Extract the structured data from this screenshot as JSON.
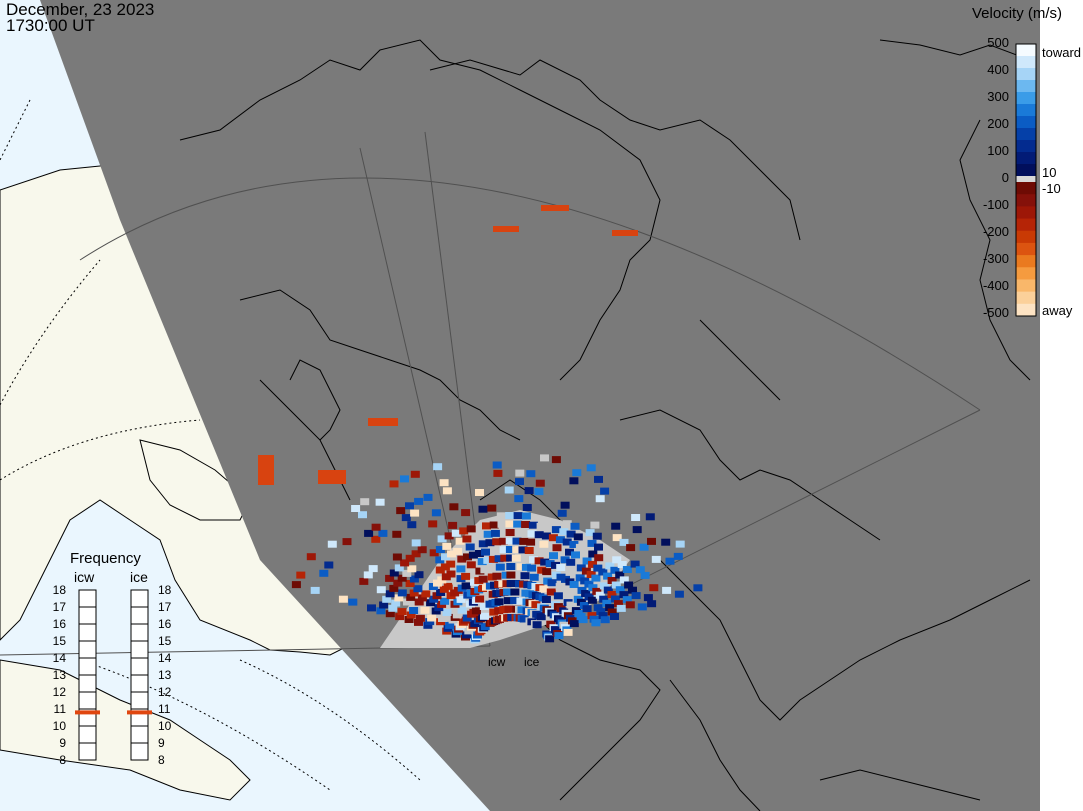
{
  "header": {
    "date": "December, 23 2023",
    "time": "1730:00 UT"
  },
  "colorbar": {
    "title": "Velocity (m/s)",
    "ticks_positive": [
      "500",
      "400",
      "300",
      "200",
      "100",
      "0"
    ],
    "ticks_negative": [
      "-100",
      "-200",
      "-300",
      "-400",
      "-500"
    ],
    "small_pos": "10",
    "small_neg": "-10",
    "toward": "toward",
    "away": "away",
    "colors": [
      "#f5fbff",
      "#cfe8fb",
      "#a6d4f6",
      "#6cb8f0",
      "#3a9ce8",
      "#1a7ad8",
      "#0b5cc4",
      "#0540a8",
      "#032b8f",
      "#021b76",
      "#010f5c"
    ],
    "colors_neg": [
      "#6e0b04",
      "#85110a",
      "#9d1707",
      "#b52406",
      "#c93a04",
      "#dc5410",
      "#ea7a1f",
      "#f59b3f",
      "#f9b76a",
      "#fbd09a",
      "#fde3c3"
    ]
  },
  "frequency": {
    "title": "Frequency",
    "radars": [
      {
        "name": "icw",
        "current_mhz": 10.8
      },
      {
        "name": "ice",
        "current_mhz": 10.8
      }
    ],
    "scale": [
      "18",
      "17",
      "16",
      "15",
      "14",
      "13",
      "12",
      "11",
      "10",
      "9",
      "8"
    ]
  },
  "radar_labels": [
    "icw",
    "ice"
  ],
  "map_colors": {
    "night": "#7a7a7a",
    "day_land": "#f8f8ec",
    "day_ocean": "#eaf6fe",
    "grid": "#505050",
    "ground_scatter": "#c8c8c8"
  }
}
